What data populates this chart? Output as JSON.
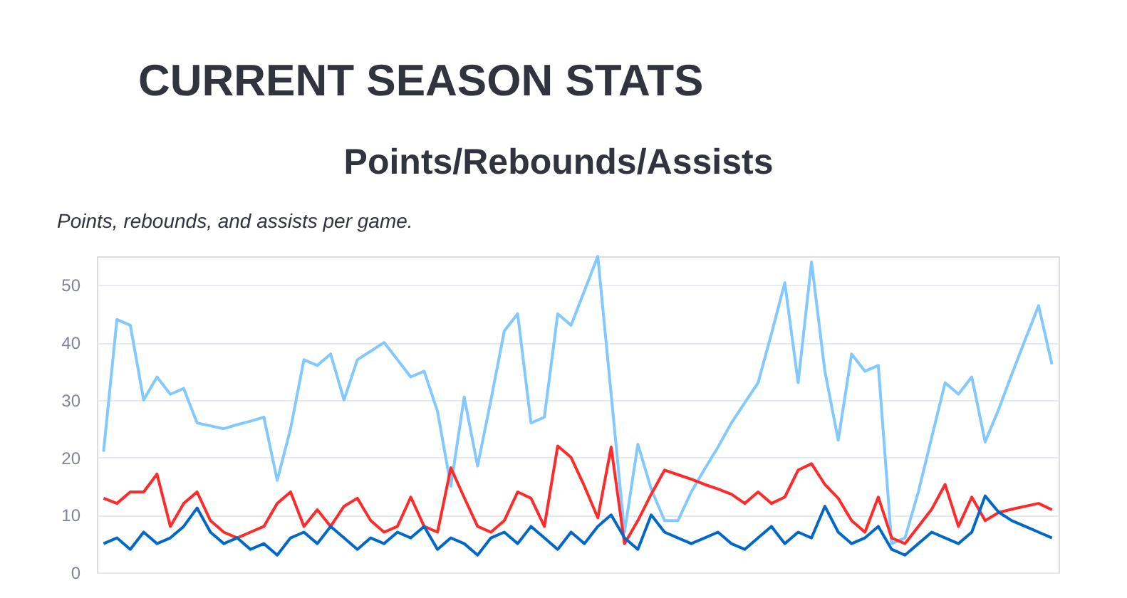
{
  "chart_data": {
    "type": "line",
    "title": "Points/Rebounds/Assists",
    "subtitle": "Points, rebounds, and assists per game.",
    "annotations": [
      "CURRENT SEASON STATS"
    ],
    "categories": [
      null,
      null,
      null,
      null,
      null,
      null,
      null,
      null,
      null,
      null,
      null,
      null,
      null,
      null,
      null,
      null,
      null,
      null,
      null,
      null,
      null,
      null,
      null,
      null,
      null,
      null,
      null,
      null,
      null,
      null,
      null,
      null,
      null,
      null,
      null,
      null,
      null,
      null,
      null,
      null,
      null,
      null,
      null,
      null,
      null,
      null,
      null,
      null,
      null,
      null,
      null,
      null,
      null,
      null,
      null,
      null,
      null,
      null,
      null,
      null,
      null,
      null,
      null,
      null,
      null,
      null,
      null,
      null,
      null,
      null,
      null,
      null
    ],
    "series": [
      {
        "color": "#83c9ff",
        "values": [
          21,
          44,
          43,
          30,
          34,
          31,
          32,
          26,
          25.5,
          25,
          25.7,
          26.3,
          27,
          16,
          25,
          37,
          36,
          38,
          30,
          37,
          38.5,
          40,
          37,
          34,
          35,
          28,
          15,
          30.5,
          18.5,
          30,
          42,
          45,
          26,
          27,
          45,
          43,
          49,
          55,
          31,
          7,
          22.3,
          14.5,
          9,
          9,
          14,
          18,
          21.8,
          26,
          29.5,
          33,
          41.5,
          50.4,
          33,
          54,
          35,
          23,
          38,
          35,
          36,
          5,
          6,
          14,
          23.5,
          33,
          31,
          34,
          22.7,
          28.3,
          34.5,
          40.5,
          46.4,
          36.2
        ]
      },
      {
        "color": "#ff2b2b",
        "values": [
          12.9,
          12,
          14,
          14,
          17.1,
          8,
          12,
          14,
          9,
          7,
          6,
          7,
          8,
          12,
          14,
          8,
          10.9,
          8,
          11.5,
          12.9,
          9,
          7,
          8,
          13.1,
          8,
          7,
          18.2,
          13,
          8,
          7,
          9,
          14,
          12.9,
          8,
          22,
          20,
          15,
          9.5,
          21.8,
          5,
          9,
          13.6,
          17.8,
          17,
          16.2,
          15.3,
          14.5,
          13.6,
          12,
          14,
          12,
          13.1,
          17.8,
          18.9,
          15.3,
          12.9,
          9,
          7,
          13.1,
          6,
          5,
          8,
          11,
          15.3,
          8,
          13.1,
          9,
          10.4,
          11,
          11.5,
          12,
          10.9
        ]
      },
      {
        "color": "#0068c9",
        "values": [
          5,
          6,
          4,
          7,
          5,
          6,
          8,
          11.2,
          7,
          5,
          6,
          4,
          5,
          3,
          6,
          7,
          5,
          8,
          6,
          4,
          6,
          5,
          7,
          6,
          8,
          4,
          6,
          5,
          3,
          6,
          7,
          5,
          8,
          6,
          4,
          7,
          5,
          8,
          10,
          6,
          4,
          10,
          7,
          6,
          5,
          6,
          7,
          5,
          4,
          6,
          8,
          5,
          7,
          6,
          11.5,
          7,
          5,
          6,
          8,
          4,
          3,
          5,
          7,
          6,
          5,
          7,
          13.3,
          10.5,
          9,
          8,
          7,
          6
        ]
      }
    ],
    "ylim": [
      0,
      55
    ],
    "yticks": [
      0,
      10,
      20,
      30,
      40,
      50
    ],
    "grid": "y",
    "legend": false,
    "marker": "none",
    "line_style": "solid"
  }
}
